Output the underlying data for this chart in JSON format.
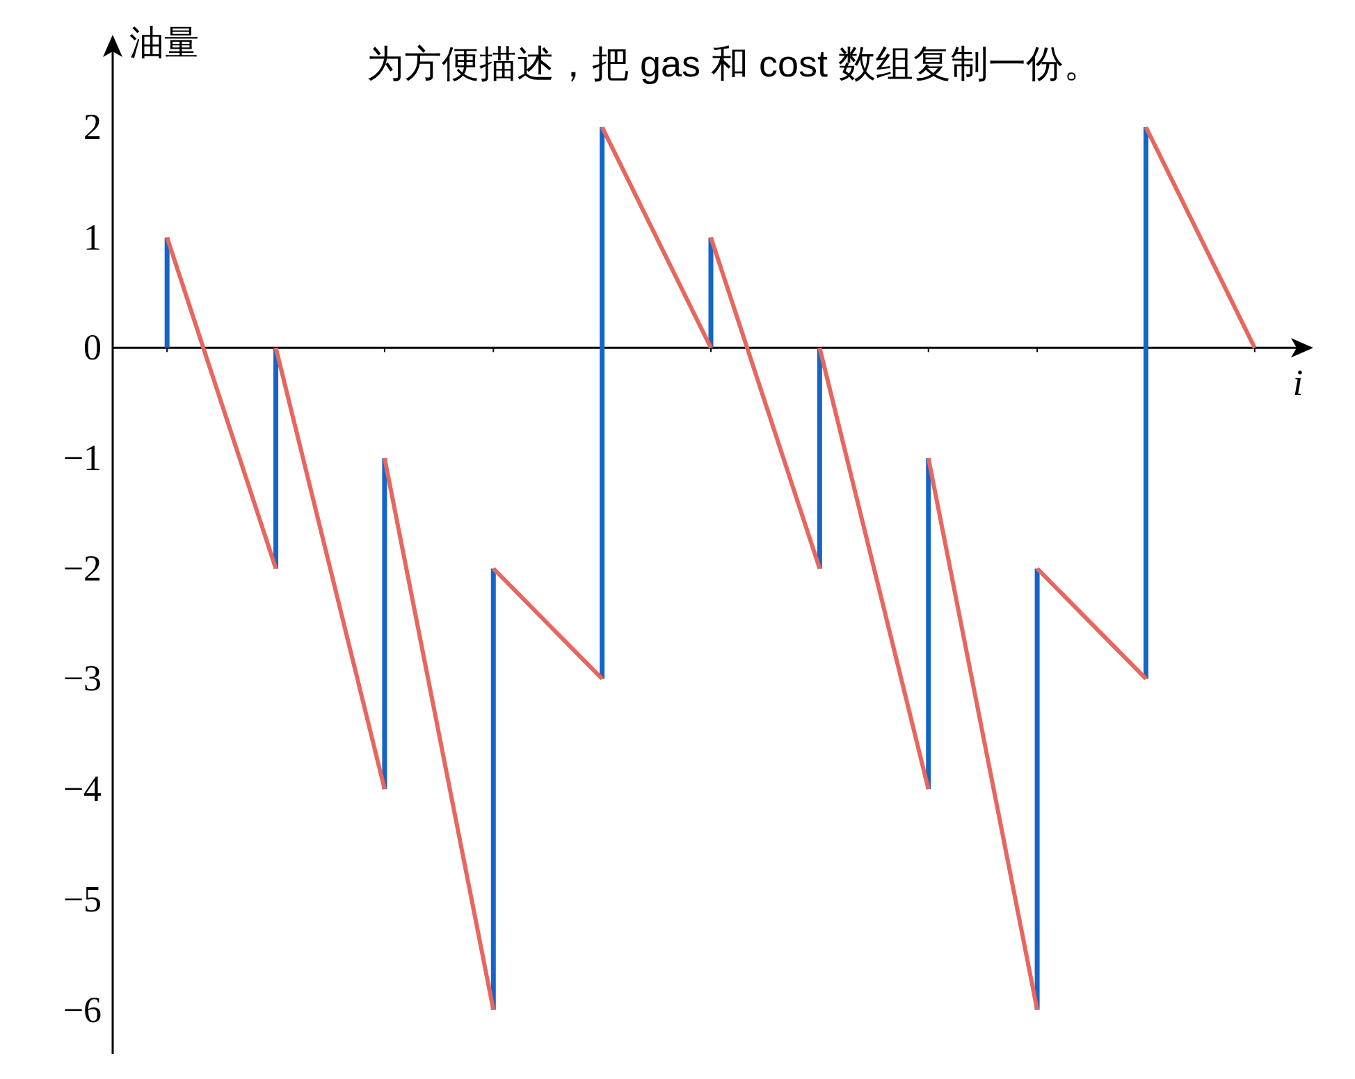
{
  "chart_data": {
    "type": "line",
    "title": "为方便描述，把 gas 和 cost 数组复制一份。",
    "xlabel": "i",
    "ylabel": "油量",
    "categories": [
      null,
      null,
      null,
      null,
      null,
      null,
      null,
      null,
      null,
      null,
      null
    ],
    "ylim": [
      -6.4,
      2.8
    ],
    "yticks": [
      -6,
      -5,
      -4,
      -3,
      -2,
      -1,
      0,
      1,
      2
    ],
    "tick_labels": "y",
    "series": [
      {
        "type": "bar",
        "color": "#1565c8",
        "base": [
          0,
          -2,
          -4,
          -6,
          -3,
          0,
          -2,
          -4,
          -6,
          -3,
          null
        ],
        "values": [
          1,
          2,
          3,
          4,
          5,
          1,
          2,
          3,
          4,
          5,
          null
        ]
      },
      {
        "color": "#e8665e",
        "values": [
          1,
          -2,
          null,
          -2,
          -3,
          null,
          0,
          -4,
          null,
          2,
          0
        ]
      },
      {
        "color": "#e8665e",
        "values": [
          null,
          0,
          -4,
          null,
          2,
          0,
          null,
          -1,
          -6,
          null,
          null
        ]
      },
      {
        "color": "#e8665e",
        "values": [
          null,
          null,
          -1,
          -6,
          null,
          1,
          -2,
          null,
          -2,
          -3,
          null
        ]
      }
    ]
  }
}
